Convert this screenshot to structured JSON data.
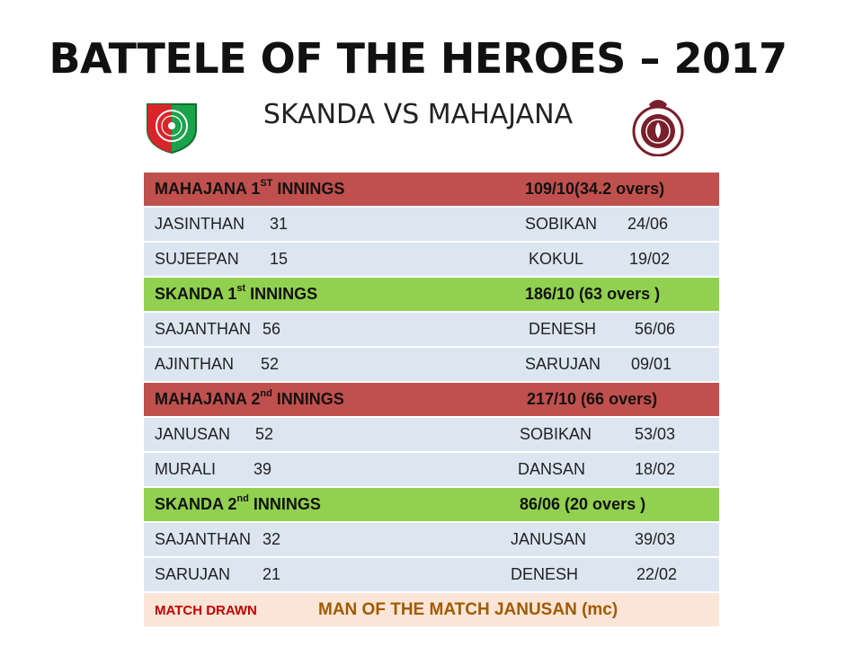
{
  "title": "BATTELE OF THE HEROES – 2017",
  "subtitle": "SKANDA VS MAHAJANA",
  "logos": {
    "left": "skanda-college-crest",
    "right": "mahajana-college-crest"
  },
  "colors": {
    "mahajana_header": "#c0504d",
    "skanda_header": "#92d050",
    "player_row": "#dce6f1",
    "footer_row": "#fbe5d6"
  },
  "innings": [
    {
      "team": "MAHAJANA 1",
      "ordinal": "ST",
      "label": " INNINGS",
      "score": "109/10(34.2 overs)",
      "rows": [
        {
          "batter": "JASINTHAN",
          "runs": "31",
          "bowler": "SOBIKAN",
          "figures": "24/06"
        },
        {
          "batter": "SUJEEPAN",
          "runs": "15",
          "bowler": "KOKUL",
          "figures": "19/02"
        }
      ]
    },
    {
      "team": "SKANDA 1",
      "ordinal": "st",
      "label": " INNINGS",
      "score": "186/10 (63 overs )",
      "rows": [
        {
          "batter": "SAJANTHAN",
          "runs": "56",
          "bowler": "DENESH",
          "figures": "56/06"
        },
        {
          "batter": "AJINTHAN",
          "runs": "52",
          "bowler": "SARUJAN",
          "figures": "09/01"
        }
      ]
    },
    {
      "team": "MAHAJANA 2",
      "ordinal": "nd",
      "label": " INNINGS",
      "score": "217/10 (66 overs)",
      "rows": [
        {
          "batter": "JANUSAN",
          "runs": "52",
          "bowler": "SOBIKAN",
          "figures": "53/03"
        },
        {
          "batter": "MURALI",
          "runs": "39",
          "bowler": "DANSAN",
          "figures": "18/02"
        }
      ]
    },
    {
      "team": "SKANDA 2",
      "ordinal": "nd",
      "label": " INNINGS",
      "score": "86/06 (20 overs )",
      "rows": [
        {
          "batter": "SAJANTHAN",
          "runs": "32",
          "bowler": "JANUSAN",
          "figures": "39/03"
        },
        {
          "batter": "SARUJAN",
          "runs": "21",
          "bowler": "DENESH",
          "figures": "22/02"
        }
      ]
    }
  ],
  "footer": {
    "result": "MATCH DRAWN",
    "man_of_match": "MAN OF THE MATCH  JANUSAN  (mc)"
  }
}
